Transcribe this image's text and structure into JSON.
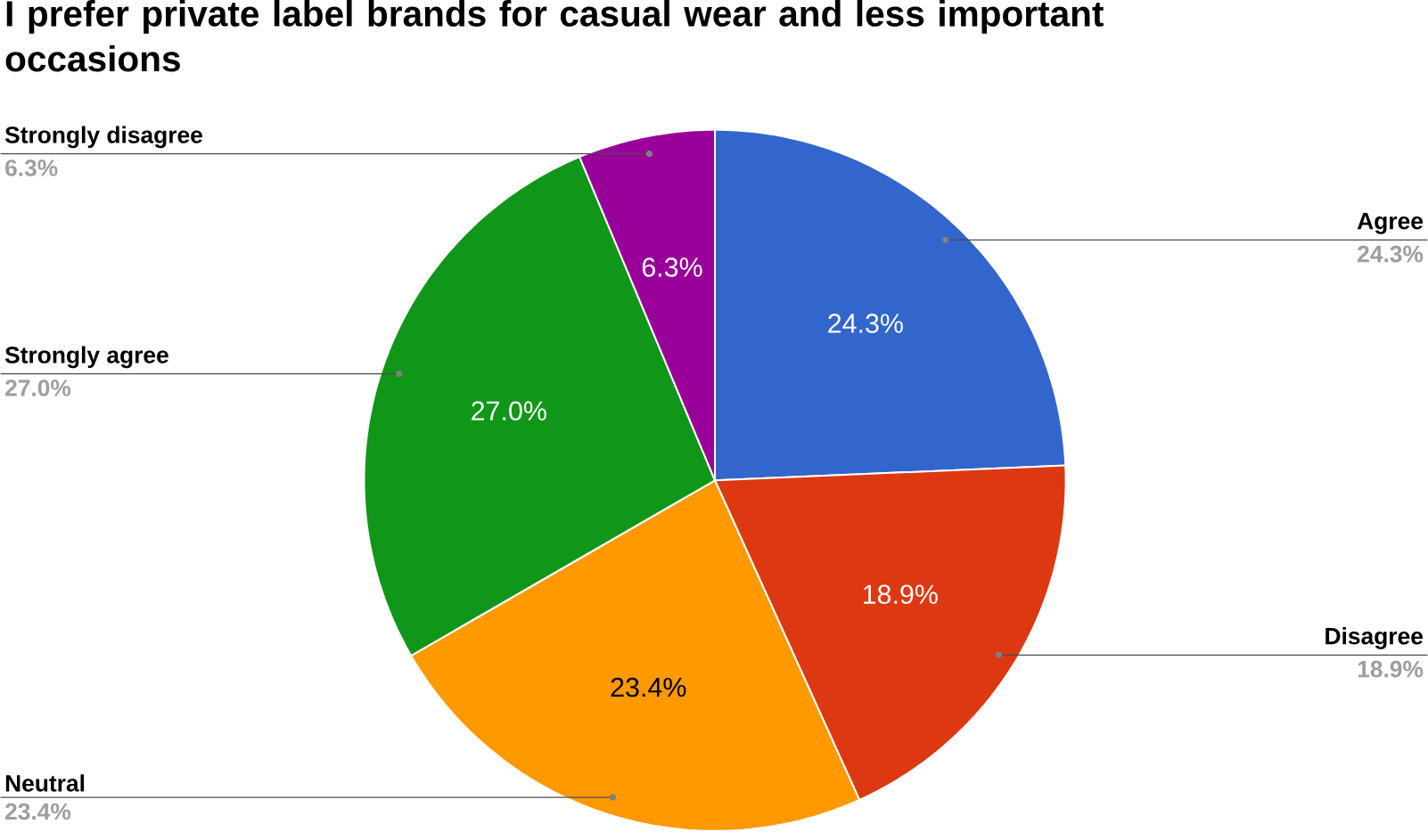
{
  "chart_data": {
    "type": "pie",
    "title": "I prefer private label brands for casual wear and less important occasions",
    "categories": [
      "Agree",
      "Disagree",
      "Neutral",
      "Strongly agree",
      "Strongly disagree"
    ],
    "values": [
      24.3,
      18.9,
      23.4,
      27.0,
      6.3
    ],
    "colors": [
      "#3366cc",
      "#dc3912",
      "#ff9900",
      "#109618",
      "#990099"
    ],
    "value_labels": [
      "24.3%",
      "18.9%",
      "23.4%",
      "27.0%",
      "6.3%"
    ]
  }
}
